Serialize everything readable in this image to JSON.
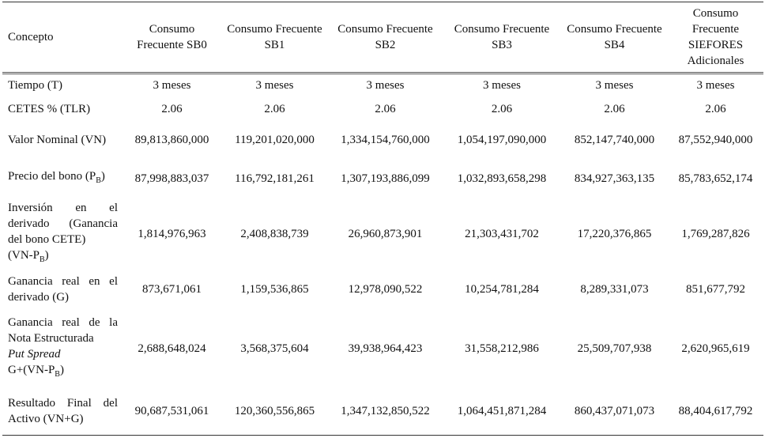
{
  "table": {
    "header": [
      "Concepto",
      "Consumo Frecuente SB0",
      "Consumo Frecuente SB1",
      "Consumo Frecuente SB2",
      "Consumo Frecuente SB3",
      "Consumo Frecuente SB4",
      "Consumo Frecuente SIEFORES Adicionales"
    ],
    "rows": [
      {
        "label": [
          [
            {
              "text": "Tiempo (T)"
            }
          ]
        ],
        "cells": [
          "3 meses",
          "3 meses",
          "3 meses",
          "3 meses",
          "3 meses",
          "3 meses"
        ]
      },
      {
        "label": [
          [
            {
              "text": "CETES % (TLR)"
            }
          ]
        ],
        "cells": [
          "2.06",
          "2.06",
          "2.06",
          "2.06",
          "2.06",
          "2.06"
        ]
      },
      {
        "label": [
          [
            {
              "text": "Valor Nominal (VN)"
            }
          ]
        ],
        "cells": [
          "89,813,860,000",
          "119,201,020,000",
          "1,334,154,760,000",
          "1,054,197,090,000",
          "852,147,740,000",
          "87,552,940,000"
        ]
      },
      {
        "label": [
          [
            {
              "text": "Precio del bono (P"
            },
            {
              "text": "B",
              "style": "sub"
            },
            {
              "text": ")"
            }
          ]
        ],
        "cells": [
          "87,998,883,037",
          "116,792,181,261",
          "1,307,193,886,099",
          "1,032,893,658,298",
          "834,927,363,135",
          "85,783,652,174"
        ]
      },
      {
        "label": [
          [
            {
              "text": "Inversión en el derivado (Ganancia del bono CETE)"
            }
          ],
          [
            {
              "text": "(VN-P"
            },
            {
              "text": "B",
              "style": "sub"
            },
            {
              "text": ")"
            }
          ]
        ],
        "cells": [
          "1,814,976,963",
          "2,408,838,739",
          "26,960,873,901",
          "21,303,431,702",
          "17,220,376,865",
          "1,769,287,826"
        ]
      },
      {
        "label": [
          [
            {
              "text": "Ganancia real en el derivado (G)"
            }
          ]
        ],
        "cells": [
          "873,671,061",
          "1,159,536,865",
          "12,978,090,522",
          "10,254,781,284",
          "8,289,331,073",
          "851,677,792"
        ]
      },
      {
        "label": [
          [
            {
              "text": "Ganancia real de la Nota Estructurada"
            }
          ],
          [
            {
              "text": "Put Spread",
              "style": "italic"
            }
          ],
          [
            {
              "text": "G+(VN-P"
            },
            {
              "text": "B",
              "style": "sub"
            },
            {
              "text": ")"
            }
          ]
        ],
        "cells": [
          "2,688,648,024",
          "3,568,375,604",
          "39,938,964,423",
          "31,558,212,986",
          "25,509,707,938",
          "2,620,965,619"
        ]
      },
      {
        "label": [
          [
            {
              "text": "Resultado Final del Activo (VN+G)"
            }
          ]
        ],
        "cells": [
          "90,687,531,061",
          "120,360,556,865",
          "1,347,132,850,522",
          "1,064,451,871,284",
          "860,437,071,073",
          "88,404,617,792"
        ]
      }
    ]
  }
}
